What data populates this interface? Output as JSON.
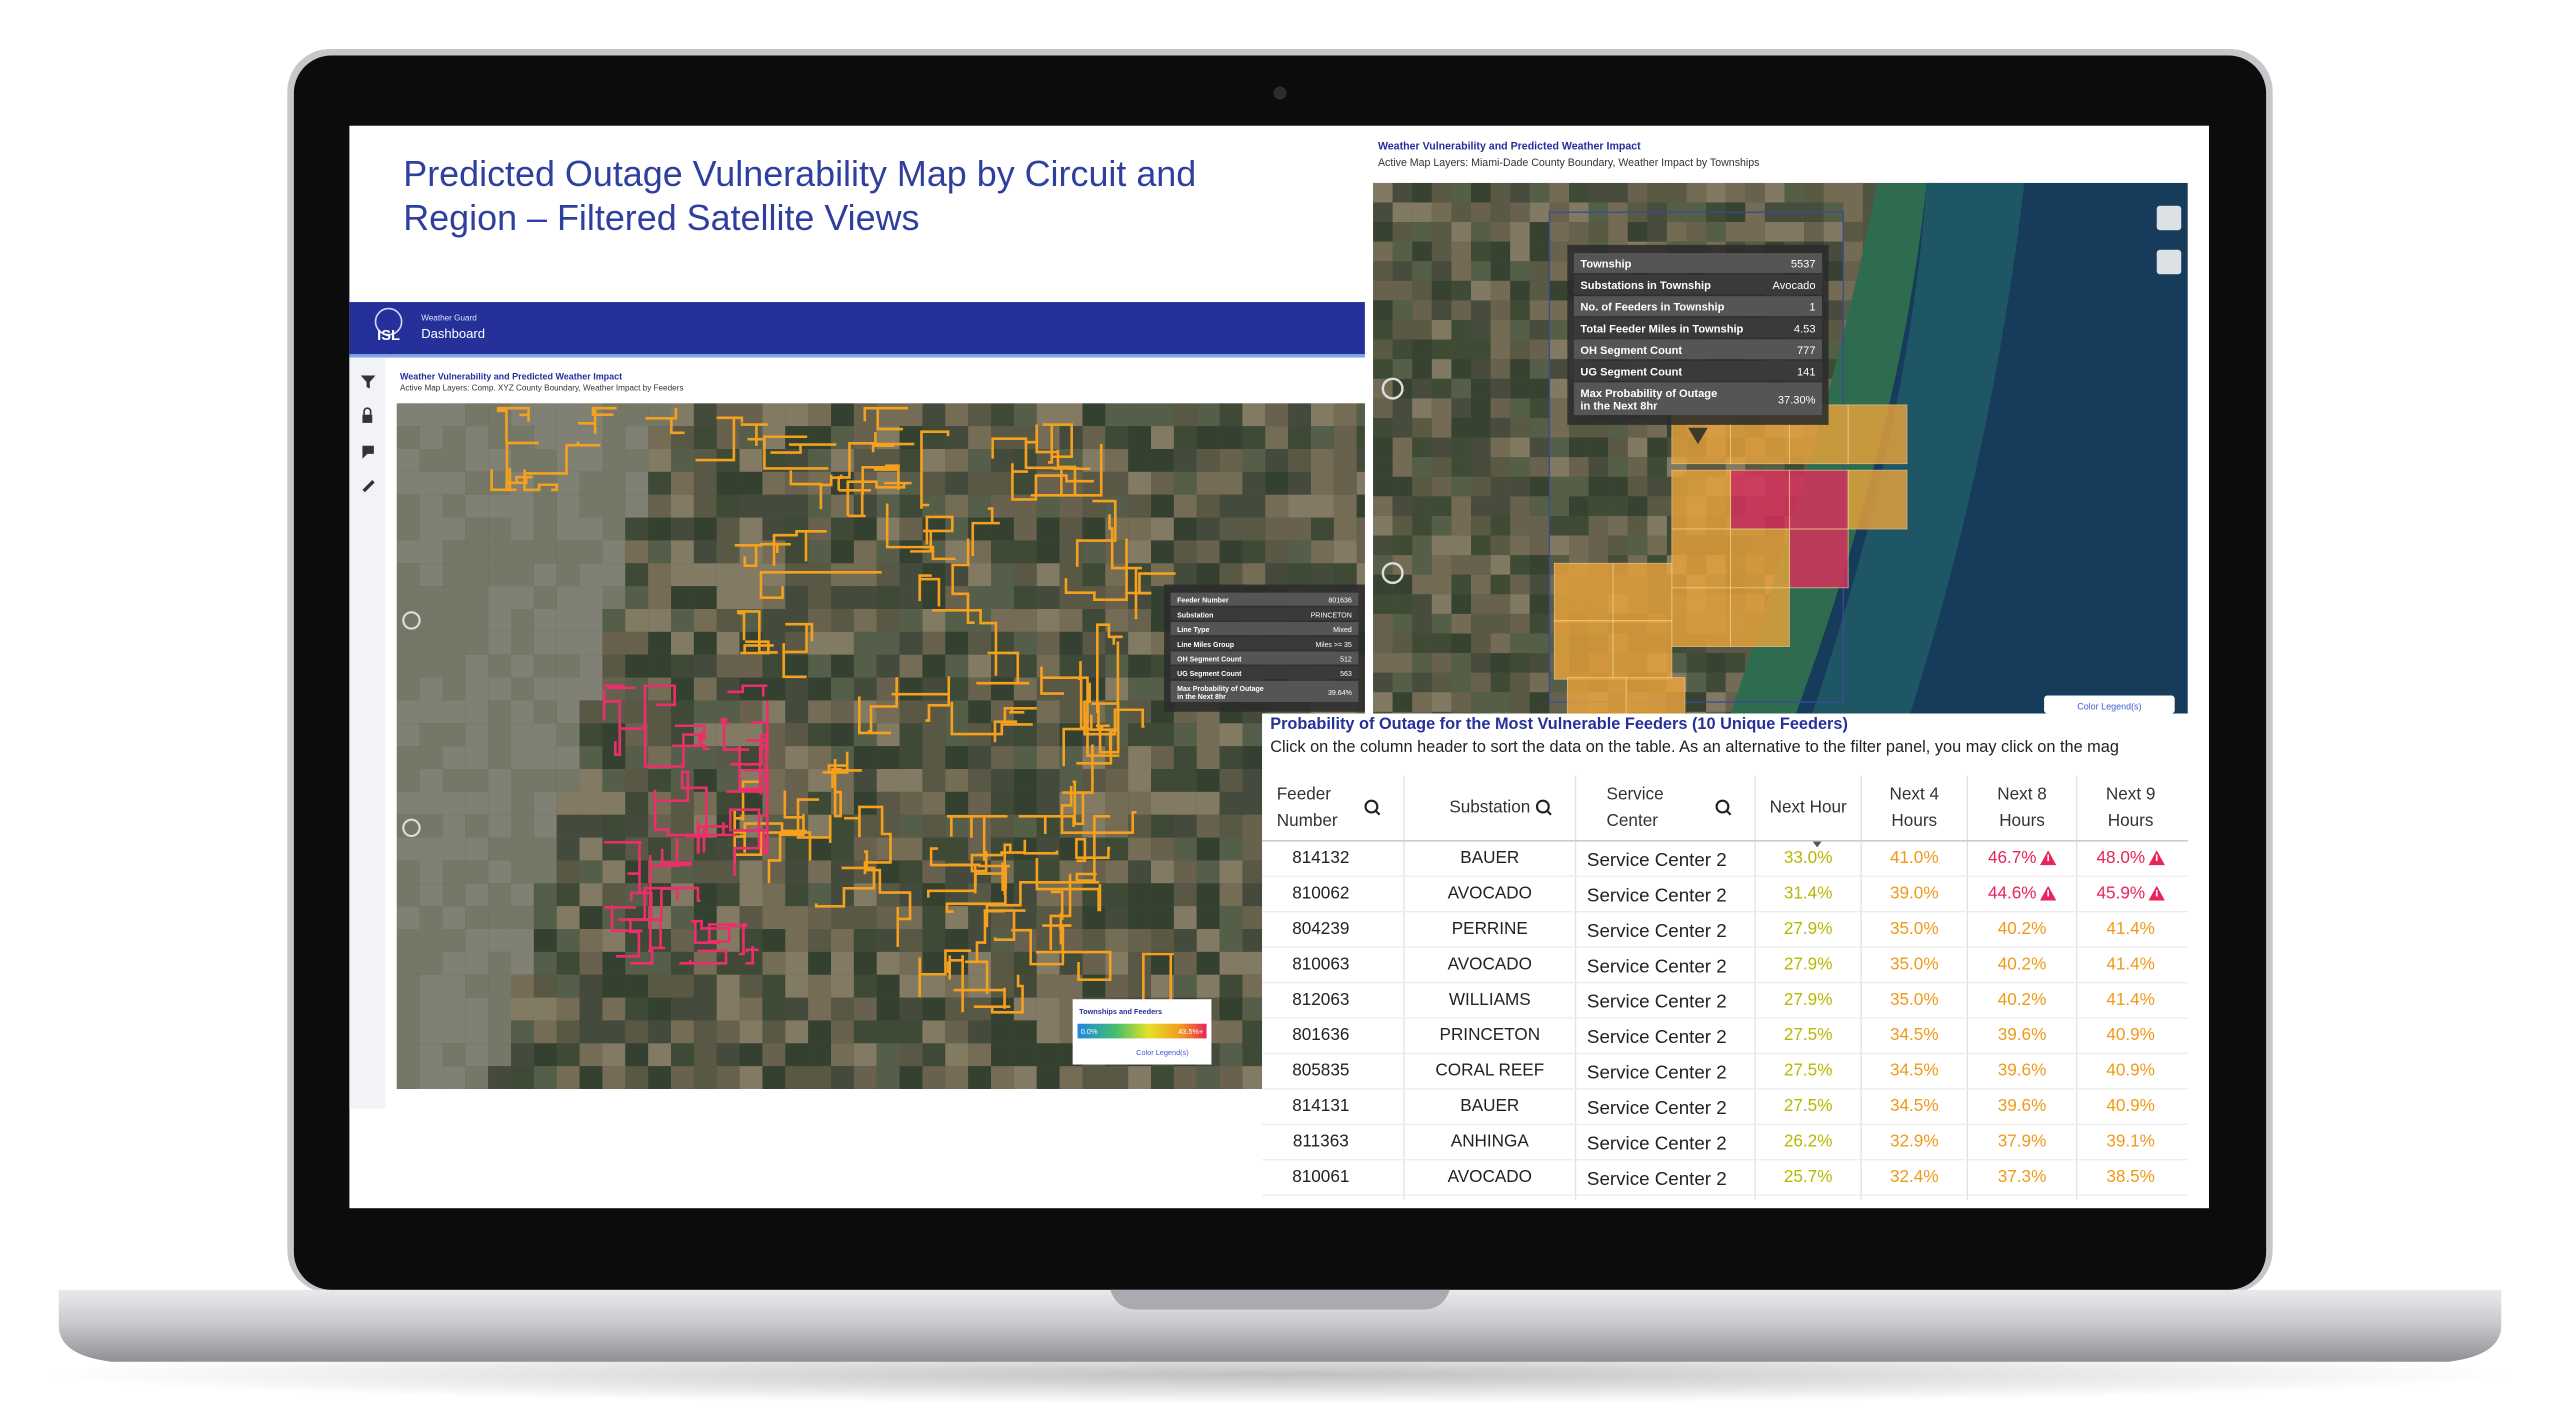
{
  "header": {
    "title": [
      "Predicted Outage Vulnerability Map by Circuit and",
      "Region – Filtered Satellite Views"
    ]
  },
  "left_dashboard": {
    "logo": "ISL",
    "app_name": "Weather Guard",
    "page": "Dashboard",
    "map_title": "Weather Vulnerability and Predicted Weather Impact",
    "map_layers": "Active Map Layers:  Comp. XYZ County Boundary,     Weather Impact by Feeders",
    "tooltip": [
      {
        "label": [
          "Feeder Number"
        ],
        "value": "801636"
      },
      {
        "label": [
          "Substation"
        ],
        "value": "PRINCETON"
      },
      {
        "label": [
          "Line Type"
        ],
        "value": "Mixed"
      },
      {
        "label": [
          "Line Miles Group"
        ],
        "value": "Miles >= 35"
      },
      {
        "label": [
          "OH Segment Count"
        ],
        "value": "512"
      },
      {
        "label": [
          "UG Segment Count"
        ],
        "value": "563"
      },
      {
        "label": [
          "Max Probability of Outage",
          "in the Next 8hr"
        ],
        "value": "39.64%"
      }
    ],
    "legend": {
      "title": "Townships and Feeders",
      "min": "0.0%",
      "max": "43.5%+",
      "button": "Color Legend(s)"
    }
  },
  "right_dashboard": {
    "map_title": "Weather Vulnerability and Predicted Weather Impact",
    "map_layers": "Active Map Layers: Miami-Dade County Boundary, Weather Impact by Townships",
    "tooltip": [
      {
        "label": [
          "Township"
        ],
        "value": "5537"
      },
      {
        "label": [
          "Substations in Township"
        ],
        "value": "Avocado"
      },
      {
        "label": [
          "No. of Feeders in Township"
        ],
        "value": "1"
      },
      {
        "label": [
          "Total Feeder Miles in Township"
        ],
        "value": "4.53"
      },
      {
        "label": [
          "OH Segment Count"
        ],
        "value": "777"
      },
      {
        "label": [
          "UG Segment Count"
        ],
        "value": "141"
      },
      {
        "label": [
          "Max Probability of Outage",
          "in the Next 8hr"
        ],
        "value": "37.30%"
      }
    ],
    "legend_button": "Color Legend(s)"
  },
  "table": {
    "title": "Probability of Outage for the Most Vulnerable Feeders (10 Unique Feeders)",
    "subtitle": "Click on the column header to sort the data on the table. As an alternative to the filter panel, you may click on the mag",
    "columns": [
      [
        "Feeder",
        "Number"
      ],
      [
        "Substation"
      ],
      [
        "Service",
        "Center"
      ],
      [
        "Next Hour"
      ],
      [
        "Next 4",
        "Hours"
      ],
      [
        "Next 8",
        "Hours"
      ],
      [
        "Next 9",
        "Hours"
      ]
    ],
    "alert_color": "#e8245a",
    "rows": [
      {
        "cells": [
          "814132",
          "BAUER",
          "Service Center 2",
          "33.0%",
          "41.0%",
          "46.7%",
          "48.0%"
        ],
        "colors": [
          "#b8b800",
          "#f09a1a",
          "#e8245a",
          "#e8245a"
        ]
      },
      {
        "cells": [
          "810062",
          "AVOCADO",
          "Service Center 2",
          "31.4%",
          "39.0%",
          "44.6%",
          "45.9%"
        ],
        "colors": [
          "#b8b800",
          "#f09a1a",
          "#e8245a",
          "#e8245a"
        ]
      },
      {
        "cells": [
          "804239",
          "PERRINE",
          "Service Center 2",
          "27.9%",
          "35.0%",
          "40.2%",
          "41.4%"
        ],
        "colors": [
          "#b8b800",
          "#f09a1a",
          "#f09a1a",
          "#f09a1a"
        ]
      },
      {
        "cells": [
          "810063",
          "AVOCADO",
          "Service Center 2",
          "27.9%",
          "35.0%",
          "40.2%",
          "41.4%"
        ],
        "colors": [
          "#b8b800",
          "#f09a1a",
          "#f09a1a",
          "#f09a1a"
        ]
      },
      {
        "cells": [
          "812063",
          "WILLIAMS",
          "Service Center 2",
          "27.9%",
          "35.0%",
          "40.2%",
          "41.4%"
        ],
        "colors": [
          "#b8b800",
          "#f09a1a",
          "#f09a1a",
          "#f09a1a"
        ]
      },
      {
        "cells": [
          "801636",
          "PRINCETON",
          "Service Center 2",
          "27.5%",
          "34.5%",
          "39.6%",
          "40.9%"
        ],
        "colors": [
          "#b8b800",
          "#f09a1a",
          "#f09a1a",
          "#f09a1a"
        ]
      },
      {
        "cells": [
          "805835",
          "CORAL REEF",
          "Service Center 2",
          "27.5%",
          "34.5%",
          "39.6%",
          "40.9%"
        ],
        "colors": [
          "#b8b800",
          "#f09a1a",
          "#f09a1a",
          "#f09a1a"
        ]
      },
      {
        "cells": [
          "814131",
          "BAUER",
          "Service Center 2",
          "27.5%",
          "34.5%",
          "39.6%",
          "40.9%"
        ],
        "colors": [
          "#b8b800",
          "#f09a1a",
          "#f09a1a",
          "#f09a1a"
        ]
      },
      {
        "cells": [
          "811363",
          "ANHINGA",
          "Service Center 2",
          "26.2%",
          "32.9%",
          "37.9%",
          "39.1%"
        ],
        "colors": [
          "#b8b800",
          "#f09a1a",
          "#f09a1a",
          "#f09a1a"
        ]
      },
      {
        "cells": [
          "810061",
          "AVOCADO",
          "Service Center 2",
          "25.7%",
          "32.4%",
          "37.3%",
          "38.5%"
        ],
        "colors": [
          "#b8b800",
          "#f09a1a",
          "#f09a1a",
          "#f09a1a"
        ]
      }
    ]
  }
}
